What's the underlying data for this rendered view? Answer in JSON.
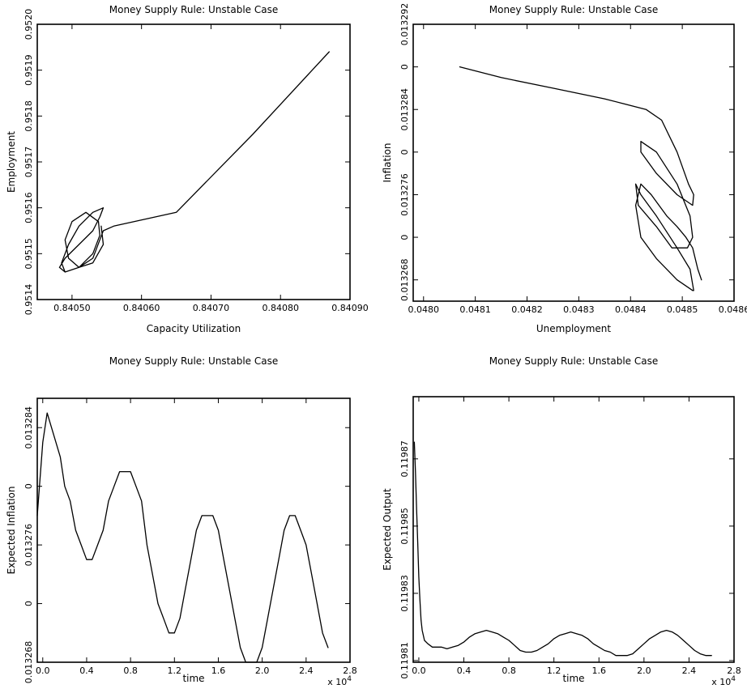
{
  "chart_data": [
    {
      "type": "line",
      "title": "Money Supply Rule: Unstable Case",
      "xlabel": "Capacity Utilization",
      "ylabel": "Employment",
      "xlim": [
        0.84045,
        0.8409
      ],
      "ylim": [
        0.9514,
        0.952
      ],
      "xticks": [
        0.8405,
        0.8406,
        0.8407,
        0.8408,
        0.8409
      ],
      "xtick_labels": [
        "0.84050",
        "0.84060",
        "0.84070",
        "0.84080",
        "0.84090"
      ],
      "yticks": [
        0.9514,
        0.9515,
        0.9516,
        0.9517,
        0.9518,
        0.9519,
        0.952
      ],
      "ytick_labels": [
        "0.9514",
        "0.9515",
        "0.9516",
        "0.9517",
        "0.9518",
        "0.9519",
        "0.9520"
      ],
      "x": [
        0.84087,
        0.84076,
        0.84065,
        0.84056,
        0.840545,
        0.84054,
        0.840535,
        0.84053,
        0.84051,
        0.84049,
        0.840485,
        0.840495,
        0.84051,
        0.84053,
        0.840545,
        0.84054,
        0.84053,
        0.84051,
        0.84049,
        0.840482,
        0.84049,
        0.84051,
        0.84053,
        0.84054,
        0.840538,
        0.84052,
        0.8405,
        0.84049,
        0.840495,
        0.84051,
        0.84053,
        0.840545,
        0.840542
      ],
      "y": [
        0.95194,
        0.95176,
        0.95159,
        0.95156,
        0.95155,
        0.95153,
        0.95151,
        0.95149,
        0.95147,
        0.95146,
        0.95148,
        0.95152,
        0.95156,
        0.95159,
        0.9516,
        0.95158,
        0.95155,
        0.95152,
        0.95149,
        0.95147,
        0.95146,
        0.95147,
        0.9515,
        0.95154,
        0.95157,
        0.95159,
        0.95157,
        0.95153,
        0.95149,
        0.95147,
        0.95148,
        0.95152,
        0.95156
      ],
      "grid": false
    },
    {
      "type": "line",
      "title": "Money Supply Rule: Unstable Case",
      "xlabel": "Unemployment",
      "ylabel": "Inflation",
      "xlim": [
        0.04798,
        0.0486
      ],
      "ylim": [
        0.013266,
        0.013292
      ],
      "xticks": [
        0.048,
        0.0481,
        0.0482,
        0.0483,
        0.0484,
        0.0485,
        0.0486
      ],
      "xtick_labels": [
        "0.0480",
        "0.0481",
        "0.0482",
        "0.0483",
        "0.0484",
        "0.0485",
        "0.0486"
      ],
      "yticks": [
        0.013268,
        0.013272,
        0.013276,
        0.01328,
        0.013284,
        0.013288,
        0.013292
      ],
      "ytick_labels": [
        "0.013268",
        "0",
        "0.013276",
        "0",
        "0.013284",
        "0",
        "0.013292"
      ],
      "x": [
        0.04807,
        0.04815,
        0.04825,
        0.04835,
        0.04843,
        0.04846,
        0.04849,
        0.048512,
        0.048522,
        0.04852,
        0.04849,
        0.04845,
        0.04842,
        0.04842,
        0.04845,
        0.04849,
        0.048515,
        0.04852,
        0.04851,
        0.04848,
        0.04845,
        0.048415,
        0.04841,
        0.04842,
        0.04845,
        0.04849,
        0.048515,
        0.048522,
        0.04852,
        0.04849,
        0.04845,
        0.04842,
        0.04841,
        0.04842,
        0.04844,
        0.04847,
        0.04849,
        0.048507,
        0.04852,
        0.04853,
        0.048537
      ],
      "y": [
        0.013288,
        0.013287,
        0.013286,
        0.013285,
        0.013284,
        0.013283,
        0.01328,
        0.013277,
        0.013276,
        0.013275,
        0.013276,
        0.013278,
        0.01328,
        0.013281,
        0.01328,
        0.013277,
        0.013274,
        0.013272,
        0.013271,
        0.013271,
        0.013273,
        0.013275,
        0.013277,
        0.013276,
        0.013274,
        0.013271,
        0.013269,
        0.013267,
        0.013267,
        0.013268,
        0.01327,
        0.013272,
        0.013275,
        0.013277,
        0.013276,
        0.013274,
        0.013273,
        0.013272,
        0.013271,
        0.013269,
        0.013268
      ],
      "grid": false
    },
    {
      "type": "line",
      "title": "Money Supply Rule: Unstable Case",
      "xlabel": "time",
      "ylabel": "Expected Inflation",
      "x_multiplier": "x 10",
      "x_multiplier_exp": "4",
      "xlim": [
        -0.05,
        2.8
      ],
      "ylim": [
        0.013268,
        0.013286
      ],
      "xticks": [
        0.0,
        0.4,
        0.8,
        1.2,
        1.6,
        2.0,
        2.4,
        2.8
      ],
      "xtick_labels": [
        "0.0",
        "0.4",
        "0.8",
        "1.2",
        "1.6",
        "2.0",
        "2.4",
        "2.8"
      ],
      "yticks": [
        0.013268,
        0.013272,
        0.013276,
        0.01328,
        0.013284
      ],
      "ytick_labels": [
        "0.013268",
        "0",
        "0.013276",
        "0",
        "0.013284"
      ],
      "x": [
        -0.05,
        -0.03,
        0.0,
        0.04,
        0.08,
        0.12,
        0.16,
        0.2,
        0.25,
        0.3,
        0.35,
        0.4,
        0.45,
        0.5,
        0.55,
        0.6,
        0.65,
        0.7,
        0.75,
        0.8,
        0.85,
        0.9,
        0.95,
        1.0,
        1.05,
        1.1,
        1.15,
        1.2,
        1.25,
        1.3,
        1.35,
        1.4,
        1.45,
        1.5,
        1.55,
        1.6,
        1.65,
        1.7,
        1.75,
        1.8,
        1.85,
        1.9,
        1.95,
        2.0,
        2.05,
        2.1,
        2.15,
        2.2,
        2.25,
        2.3,
        2.35,
        2.4,
        2.45,
        2.5,
        2.55,
        2.6
      ],
      "y": [
        0.013278,
        0.01328,
        0.013283,
        0.013285,
        0.013284,
        0.013283,
        0.013282,
        0.01328,
        0.013279,
        0.013277,
        0.013276,
        0.013275,
        0.013275,
        0.013276,
        0.013277,
        0.013279,
        0.01328,
        0.013281,
        0.013281,
        0.013281,
        0.01328,
        0.013279,
        0.013276,
        0.013274,
        0.013272,
        0.013271,
        0.01327,
        0.01327,
        0.013271,
        0.013273,
        0.013275,
        0.013277,
        0.013278,
        0.013278,
        0.013278,
        0.013277,
        0.013275,
        0.013273,
        0.013271,
        0.013269,
        0.013268,
        0.013268,
        0.013268,
        0.013269,
        0.013271,
        0.013273,
        0.013275,
        0.013277,
        0.013278,
        0.013278,
        0.013277,
        0.013276,
        0.013274,
        0.013272,
        0.01327,
        0.013269
      ],
      "grid": false
    },
    {
      "type": "line",
      "title": "Money Supply Rule: Unstable Case",
      "xlabel": "time",
      "ylabel": "Expected Output",
      "x_multiplier": "x 10",
      "x_multiplier_exp": "4",
      "xlim": [
        -0.05,
        2.8
      ],
      "ylim": [
        0.1198095,
        0.1198885
      ],
      "xticks": [
        0.0,
        0.4,
        0.8,
        1.2,
        1.6,
        2.0,
        2.4,
        2.8
      ],
      "xtick_labels": [
        "0.0",
        "0.4",
        "0.8",
        "1.2",
        "1.6",
        "2.0",
        "2.4",
        "2.8"
      ],
      "yticks": [
        0.11981,
        0.11983,
        0.11985,
        0.11987
      ],
      "ytick_labels": [
        "0.11981",
        "0.11983",
        "0.11985",
        "0.11987"
      ],
      "x": [
        -0.04,
        -0.03,
        -0.02,
        -0.01,
        0.0,
        0.01,
        0.02,
        0.03,
        0.05,
        0.08,
        0.12,
        0.16,
        0.2,
        0.25,
        0.3,
        0.35,
        0.4,
        0.45,
        0.5,
        0.55,
        0.6,
        0.65,
        0.7,
        0.75,
        0.8,
        0.85,
        0.9,
        0.95,
        1.0,
        1.05,
        1.1,
        1.15,
        1.2,
        1.25,
        1.3,
        1.35,
        1.4,
        1.45,
        1.5,
        1.55,
        1.6,
        1.65,
        1.7,
        1.75,
        1.8,
        1.85,
        1.9,
        1.95,
        2.0,
        2.05,
        2.1,
        2.15,
        2.2,
        2.25,
        2.3,
        2.35,
        2.4,
        2.45,
        2.5,
        2.55,
        2.6
      ],
      "y": [
        0.119875,
        0.119866,
        0.119855,
        0.119845,
        0.119835,
        0.119828,
        0.119822,
        0.119819,
        0.119816,
        0.119815,
        0.119814,
        0.119814,
        0.119814,
        0.1198135,
        0.119814,
        0.1198145,
        0.1198155,
        0.119817,
        0.119818,
        0.1198185,
        0.119819,
        0.1198185,
        0.119818,
        0.119817,
        0.119816,
        0.1198145,
        0.119813,
        0.1198125,
        0.1198125,
        0.119813,
        0.119814,
        0.119815,
        0.1198165,
        0.1198175,
        0.119818,
        0.1198185,
        0.119818,
        0.1198175,
        0.1198165,
        0.119815,
        0.119814,
        0.119813,
        0.1198125,
        0.1198115,
        0.1198115,
        0.1198115,
        0.119812,
        0.1198135,
        0.119815,
        0.1198165,
        0.1198175,
        0.1198185,
        0.119819,
        0.1198185,
        0.1198175,
        0.119816,
        0.1198145,
        0.119813,
        0.119812,
        0.1198115,
        0.1198115
      ],
      "grid": false
    }
  ]
}
